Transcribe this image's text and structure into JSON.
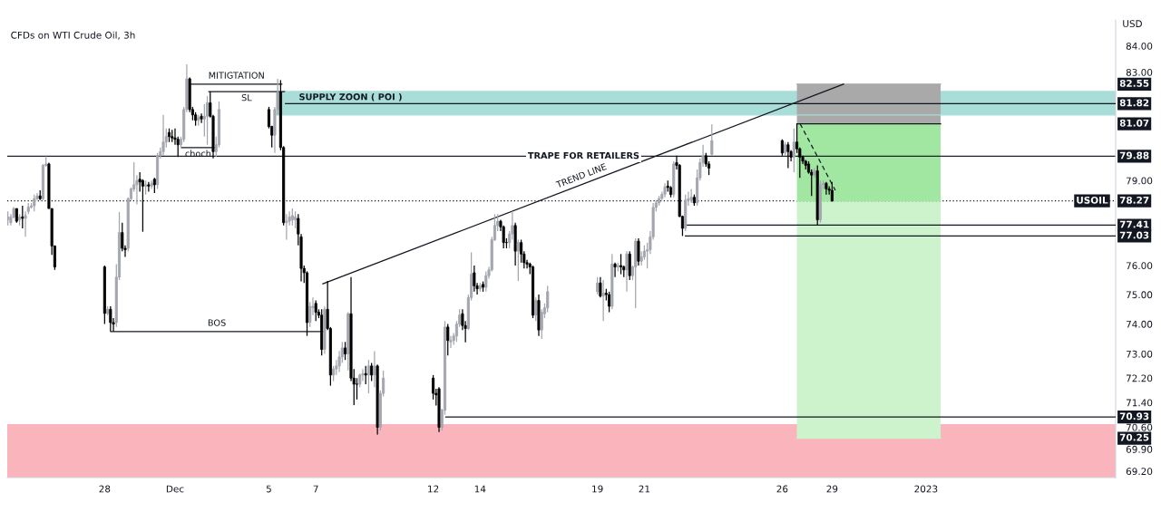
{
  "chart_data": {
    "type": "candlestick",
    "title": "CFDs on WTI Crude Oil, 3h",
    "ylabel": "USD",
    "log": true,
    "grid": false,
    "ylim": [
      69.0,
      85.0
    ],
    "yticks": [
      {
        "value": 84,
        "label": "84.00"
      },
      {
        "value": 83,
        "label": "83.00"
      },
      {
        "value": 79,
        "label": "79.00"
      },
      {
        "value": 76,
        "label": "76.00"
      },
      {
        "value": 75,
        "label": "75.00"
      },
      {
        "value": 74,
        "label": "74.00"
      },
      {
        "value": 73,
        "label": "73.00"
      },
      {
        "value": 72.2,
        "label": "72.20"
      },
      {
        "value": 71.4,
        "label": "71.40"
      },
      {
        "value": 70.6,
        "label": "70.60"
      },
      {
        "value": 69.9,
        "label": "69.90"
      },
      {
        "value": 69.2,
        "label": "69.20"
      }
    ],
    "xlim": [
      "2022-11-23T20:24",
      "2023-01-10T02:00"
    ],
    "xticks": [
      {
        "value": "2022-11-28",
        "label": "28"
      },
      {
        "value": "2022-12-01",
        "label": "Dec"
      },
      {
        "value": "2022-12-05",
        "label": "5"
      },
      {
        "value": "2022-12-07",
        "label": "7"
      },
      {
        "value": "2022-12-12",
        "label": "12"
      },
      {
        "value": "2022-12-14",
        "label": "14"
      },
      {
        "value": "2022-12-19",
        "label": "19"
      },
      {
        "value": "2022-12-21",
        "label": "21"
      },
      {
        "value": "2022-12-26T21:00",
        "label": "26"
      },
      {
        "value": "2022-12-29",
        "label": "29"
      },
      {
        "value": "2023-01-02",
        "label": "2023"
      }
    ],
    "x": [
      "2022-11-23T21:00",
      "2022-11-24T00:00",
      "2022-11-24T03:00",
      "2022-11-24T06:00",
      "2022-11-24T09:00",
      "2022-11-24T12:00",
      "2022-11-24T15:00",
      "2022-11-24T18:00",
      "2022-11-24T21:00",
      "2022-11-25T00:00",
      "2022-11-25T03:00",
      "2022-11-25T06:00",
      "2022-11-25T09:00",
      "2022-11-25T12:00",
      "2022-11-25T15:00",
      "2022-11-25T18:00",
      "2022-11-25T21:00",
      "2022-11-28T00:00",
      "2022-11-28T03:00",
      "2022-11-28T06:00",
      "2022-11-28T09:00",
      "2022-11-28T12:00",
      "2022-11-28T15:00",
      "2022-11-28T18:00",
      "2022-11-28T21:00",
      "2022-11-29T00:00",
      "2022-11-29T03:00",
      "2022-11-29T06:00",
      "2022-11-29T09:00",
      "2022-11-29T12:00",
      "2022-11-29T15:00",
      "2022-11-29T18:00",
      "2022-11-29T21:00",
      "2022-11-30T00:00",
      "2022-11-30T03:00",
      "2022-11-30T06:00",
      "2022-11-30T09:00",
      "2022-11-30T12:00",
      "2022-11-30T15:00",
      "2022-11-30T18:00",
      "2022-11-30T21:00",
      "2022-12-01T00:00",
      "2022-12-01T03:00",
      "2022-12-01T06:00",
      "2022-12-01T09:00",
      "2022-12-01T12:00",
      "2022-12-01T15:00",
      "2022-12-01T18:00",
      "2022-12-01T21:00",
      "2022-12-02T00:00",
      "2022-12-02T03:00",
      "2022-12-02T06:00",
      "2022-12-02T09:00",
      "2022-12-02T12:00",
      "2022-12-02T15:00",
      "2022-12-02T18:00",
      "2022-12-02T21:00",
      "2022-12-05T00:00",
      "2022-12-05T03:00",
      "2022-12-05T06:00",
      "2022-12-05T09:00",
      "2022-12-05T12:00",
      "2022-12-05T15:00",
      "2022-12-05T18:00",
      "2022-12-05T21:00",
      "2022-12-06T00:00",
      "2022-12-06T03:00",
      "2022-12-06T06:00",
      "2022-12-06T09:00",
      "2022-12-06T12:00",
      "2022-12-06T15:00",
      "2022-12-06T18:00",
      "2022-12-06T21:00",
      "2022-12-07T00:00",
      "2022-12-07T03:00",
      "2022-12-07T06:00",
      "2022-12-07T09:00",
      "2022-12-07T12:00",
      "2022-12-07T15:00",
      "2022-12-07T18:00",
      "2022-12-07T21:00",
      "2022-12-08T00:00",
      "2022-12-08T03:00",
      "2022-12-08T06:00",
      "2022-12-08T09:00",
      "2022-12-08T12:00",
      "2022-12-08T15:00",
      "2022-12-08T18:00",
      "2022-12-08T21:00",
      "2022-12-09T00:00",
      "2022-12-09T03:00",
      "2022-12-09T06:00",
      "2022-12-09T09:00",
      "2022-12-09T12:00",
      "2022-12-09T15:00",
      "2022-12-09T18:00",
      "2022-12-09T21:00",
      "2022-12-12T00:00",
      "2022-12-12T03:00",
      "2022-12-12T06:00",
      "2022-12-12T09:00",
      "2022-12-12T12:00",
      "2022-12-12T15:00",
      "2022-12-12T18:00",
      "2022-12-12T21:00",
      "2022-12-13T00:00",
      "2022-12-13T03:00",
      "2022-12-13T06:00",
      "2022-12-13T09:00",
      "2022-12-13T12:00",
      "2022-12-13T15:00",
      "2022-12-13T18:00",
      "2022-12-13T21:00",
      "2022-12-14T00:00",
      "2022-12-14T03:00",
      "2022-12-14T06:00",
      "2022-12-14T09:00",
      "2022-12-14T12:00",
      "2022-12-14T15:00",
      "2022-12-14T18:00",
      "2022-12-14T21:00",
      "2022-12-15T00:00",
      "2022-12-15T03:00",
      "2022-12-15T06:00",
      "2022-12-15T09:00",
      "2022-12-15T12:00",
      "2022-12-15T15:00",
      "2022-12-15T18:00",
      "2022-12-15T21:00",
      "2022-12-16T00:00",
      "2022-12-16T03:00",
      "2022-12-16T06:00",
      "2022-12-16T09:00",
      "2022-12-16T12:00",
      "2022-12-16T15:00",
      "2022-12-16T18:00",
      "2022-12-16T21:00",
      "2022-12-19T00:00",
      "2022-12-19T03:00",
      "2022-12-19T06:00",
      "2022-12-19T09:00",
      "2022-12-19T12:00",
      "2022-12-19T15:00",
      "2022-12-19T18:00",
      "2022-12-19T21:00",
      "2022-12-20T00:00",
      "2022-12-20T03:00",
      "2022-12-20T06:00",
      "2022-12-20T09:00",
      "2022-12-20T12:00",
      "2022-12-20T15:00",
      "2022-12-20T18:00",
      "2022-12-20T21:00",
      "2022-12-21T00:00",
      "2022-12-21T03:00",
      "2022-12-21T06:00",
      "2022-12-21T09:00",
      "2022-12-21T12:00",
      "2022-12-21T15:00",
      "2022-12-21T18:00",
      "2022-12-21T21:00",
      "2022-12-22T00:00",
      "2022-12-22T03:00",
      "2022-12-22T06:00",
      "2022-12-22T09:00",
      "2022-12-22T12:00",
      "2022-12-22T15:00",
      "2022-12-22T18:00",
      "2022-12-22T21:00",
      "2022-12-23T00:00",
      "2022-12-23T03:00",
      "2022-12-23T06:00",
      "2022-12-23T09:00",
      "2022-12-23T12:00",
      "2022-12-23T15:00",
      "2022-12-23T18:00",
      "2022-12-23T21:00",
      "2022-12-26T21:00",
      "2022-12-27T00:00",
      "2022-12-27T03:00",
      "2022-12-27T06:00",
      "2022-12-27T09:00",
      "2022-12-27T12:00",
      "2022-12-27T15:00",
      "2022-12-27T18:00",
      "2022-12-27T21:00",
      "2022-12-28T00:00",
      "2022-12-28T03:00",
      "2022-12-28T06:00",
      "2022-12-28T09:00",
      "2022-12-28T12:00",
      "2022-12-28T15:00",
      "2022-12-28T18:00",
      "2022-12-28T21:00",
      "2022-12-29T00:00"
    ],
    "ohlc": [
      [
        77.6,
        77.9,
        77.4,
        77.7
      ],
      [
        77.5,
        77.8,
        77.4,
        77.7
      ],
      [
        77.7,
        78.05,
        77.65,
        78.0
      ],
      [
        78.0,
        78.0,
        77.5,
        77.55
      ],
      [
        77.6,
        77.8,
        77.4,
        77.7
      ],
      [
        77.7,
        78.1,
        77.3,
        77.65
      ],
      [
        77.65,
        77.9,
        77.0,
        77.75
      ],
      [
        77.9,
        78.2,
        77.8,
        78.05
      ],
      [
        78.05,
        78.2,
        78.0,
        78.1
      ],
      [
        78.1,
        78.5,
        77.9,
        78.35
      ],
      [
        78.35,
        78.55,
        78.3,
        78.45
      ],
      [
        78.45,
        78.65,
        78.3,
        78.35
      ],
      [
        78.35,
        79.6,
        78.3,
        79.55
      ],
      [
        79.55,
        79.88,
        79.5,
        79.6
      ],
      [
        79.6,
        79.65,
        78.0,
        78.0
      ],
      [
        78.0,
        78.0,
        76.37,
        76.68
      ],
      [
        76.68,
        76.7,
        75.85,
        75.95
      ],
      [
        75.95,
        76.0,
        74.0,
        74.36
      ],
      [
        74.36,
        74.6,
        74.3,
        74.5
      ],
      [
        74.5,
        74.6,
        73.75,
        74.05
      ],
      [
        74.05,
        74.2,
        73.75,
        74.0
      ],
      [
        74.05,
        76.05,
        73.9,
        75.6
      ],
      [
        75.6,
        77.88,
        75.5,
        77.15
      ],
      [
        77.15,
        77.5,
        76.5,
        76.6
      ],
      [
        76.6,
        76.7,
        76.3,
        76.55
      ],
      [
        76.6,
        78.4,
        76.5,
        78.35
      ],
      [
        78.35,
        78.75,
        78.3,
        78.7
      ],
      [
        78.7,
        79.66,
        78.6,
        78.85
      ],
      [
        78.85,
        79.2,
        78.15,
        79.0
      ],
      [
        79.05,
        79.3,
        78.6,
        78.95
      ],
      [
        79.0,
        79.05,
        77.18,
        78.8
      ],
      [
        78.8,
        79.0,
        78.5,
        78.85
      ],
      [
        78.85,
        78.95,
        78.6,
        78.8
      ],
      [
        78.8,
        79.0,
        78.7,
        78.9
      ],
      [
        79.05,
        79.1,
        78.55,
        78.85
      ],
      [
        78.85,
        80.0,
        78.7,
        79.9
      ],
      [
        79.9,
        80.2,
        79.8,
        80.05
      ],
      [
        80.05,
        81.4,
        79.9,
        80.4
      ],
      [
        80.4,
        80.9,
        80.2,
        80.6
      ],
      [
        80.75,
        80.9,
        80.4,
        80.6
      ],
      [
        80.6,
        80.85,
        80.4,
        80.55
      ],
      [
        80.55,
        80.9,
        80.3,
        80.5
      ],
      [
        80.5,
        80.6,
        79.85,
        80.3
      ],
      [
        80.3,
        80.6,
        80.2,
        80.5
      ],
      [
        80.5,
        81.7,
        80.4,
        81.6
      ],
      [
        81.6,
        83.3,
        81.5,
        82.75
      ],
      [
        82.75,
        82.8,
        81.5,
        81.6
      ],
      [
        81.6,
        81.7,
        81.2,
        81.4
      ],
      [
        81.4,
        81.5,
        81.0,
        81.2
      ],
      [
        81.2,
        81.4,
        81.0,
        81.3
      ],
      [
        81.35,
        81.45,
        81.1,
        81.25
      ],
      [
        81.25,
        81.8,
        80.6,
        81.35
      ],
      [
        81.35,
        82.1,
        80.3,
        81.85
      ],
      [
        81.85,
        82.27,
        81.3,
        81.35
      ],
      [
        81.35,
        81.4,
        79.8,
        80.05
      ],
      [
        80.05,
        80.6,
        79.85,
        80.3
      ],
      [
        80.3,
        81.9,
        80.2,
        81.6
      ],
      [
        81.6,
        81.7,
        80.9,
        80.97
      ],
      [
        80.97,
        81.0,
        80.2,
        80.65
      ],
      [
        80.65,
        81.7,
        80.0,
        81.6
      ],
      [
        81.6,
        82.75,
        81.4,
        82.25
      ],
      [
        82.25,
        82.7,
        80.1,
        80.2
      ],
      [
        80.2,
        80.25,
        77.4,
        77.5
      ],
      [
        77.5,
        77.8,
        76.9,
        77.55
      ],
      [
        77.55,
        77.9,
        77.4,
        77.7
      ],
      [
        77.6,
        78.0,
        77.4,
        77.75
      ],
      [
        77.6,
        77.9,
        77.3,
        77.7
      ],
      [
        77.65,
        77.8,
        76.7,
        77.1
      ],
      [
        77.0,
        77.1,
        75.45,
        75.9
      ],
      [
        75.9,
        76.0,
        75.4,
        75.75
      ],
      [
        75.75,
        75.8,
        73.6,
        74.05
      ],
      [
        74.06,
        74.75,
        73.9,
        74.6
      ],
      [
        74.55,
        74.9,
        74.3,
        74.6
      ],
      [
        74.7,
        74.8,
        74.1,
        74.4
      ],
      [
        74.4,
        74.5,
        74.2,
        74.3
      ],
      [
        74.3,
        74.5,
        72.95,
        73.15
      ],
      [
        73.15,
        74.6,
        73.0,
        74.5
      ],
      [
        74.5,
        75.47,
        73.8,
        73.85
      ],
      [
        73.85,
        73.9,
        71.95,
        72.3
      ],
      [
        72.3,
        72.6,
        72.1,
        72.5
      ],
      [
        72.5,
        72.8,
        72.3,
        72.6
      ],
      [
        72.6,
        73.1,
        72.4,
        72.9
      ],
      [
        72.9,
        73.4,
        72.7,
        73.2
      ],
      [
        73.2,
        73.4,
        72.8,
        73.0
      ],
      [
        73.0,
        74.4,
        72.45,
        74.35
      ],
      [
        74.35,
        75.6,
        72.1,
        72.2
      ],
      [
        72.2,
        72.5,
        71.32,
        72.0
      ],
      [
        72.0,
        72.2,
        71.5,
        72.0
      ],
      [
        72.0,
        72.35,
        71.9,
        72.3
      ],
      [
        72.3,
        72.5,
        72.1,
        72.35
      ],
      [
        72.35,
        72.6,
        72.0,
        72.3
      ],
      [
        72.3,
        72.8,
        71.7,
        72.6
      ],
      [
        72.6,
        72.7,
        72.1,
        72.3
      ],
      [
        72.3,
        73.09,
        71.9,
        72.6
      ],
      [
        72.6,
        72.65,
        70.37,
        70.6
      ],
      [
        70.6,
        71.8,
        70.5,
        71.7
      ],
      [
        71.7,
        72.45,
        71.6,
        72.2
      ],
      [
        72.2,
        72.3,
        71.5,
        71.7
      ],
      [
        71.7,
        71.85,
        71.3,
        71.65
      ],
      [
        71.85,
        71.9,
        70.45,
        70.6
      ],
      [
        70.6,
        71.2,
        70.5,
        71.15
      ],
      [
        71.15,
        74.1,
        71.0,
        73.9
      ],
      [
        73.9,
        74.0,
        72.95,
        73.45
      ],
      [
        73.4,
        73.6,
        73.2,
        73.45
      ],
      [
        73.45,
        73.7,
        73.3,
        73.6
      ],
      [
        73.6,
        74.1,
        73.4,
        74.0
      ],
      [
        74.0,
        74.5,
        73.9,
        74.3
      ],
      [
        74.35,
        74.5,
        73.8,
        73.95
      ],
      [
        73.95,
        74.1,
        73.39,
        73.85
      ],
      [
        73.85,
        75.0,
        73.8,
        74.9
      ],
      [
        74.9,
        76.46,
        74.8,
        75.7
      ],
      [
        75.75,
        76.0,
        75.1,
        75.3
      ],
      [
        75.3,
        75.4,
        75.0,
        75.2
      ],
      [
        75.2,
        75.4,
        75.1,
        75.3
      ],
      [
        75.35,
        75.45,
        75.1,
        75.25
      ],
      [
        75.25,
        75.8,
        75.1,
        75.65
      ],
      [
        75.65,
        75.95,
        75.55,
        75.85
      ],
      [
        75.85,
        77.0,
        75.8,
        76.9
      ],
      [
        76.9,
        77.8,
        76.85,
        77.4
      ],
      [
        77.4,
        77.8,
        77.2,
        77.55
      ],
      [
        77.55,
        77.6,
        77.2,
        77.35
      ],
      [
        77.35,
        77.4,
        76.6,
        76.8
      ],
      [
        76.8,
        76.95,
        76.6,
        76.8
      ],
      [
        76.8,
        77.2,
        76.6,
        77.1
      ],
      [
        77.1,
        77.9,
        76.9,
        77.4
      ],
      [
        77.4,
        77.5,
        76.0,
        76.5
      ],
      [
        76.5,
        76.9,
        75.47,
        76.8
      ],
      [
        76.8,
        76.9,
        76.1,
        76.4
      ],
      [
        76.4,
        76.5,
        75.9,
        76.1
      ],
      [
        76.1,
        76.2,
        75.9,
        76.05
      ],
      [
        76.05,
        76.1,
        75.7,
        75.95
      ],
      [
        75.95,
        76.0,
        74.2,
        74.3
      ],
      [
        74.3,
        74.9,
        74.1,
        74.8
      ],
      [
        74.8,
        75.0,
        73.6,
        73.8
      ],
      [
        73.8,
        74.5,
        73.5,
        74.4
      ],
      [
        74.35,
        74.7,
        74.2,
        74.55
      ],
      [
        74.55,
        75.3,
        74.4,
        75.1
      ],
      [
        75.1,
        75.6,
        75.0,
        75.4
      ],
      [
        75.4,
        75.6,
        74.9,
        74.95
      ],
      [
        74.95,
        75.5,
        74.1,
        75.05
      ],
      [
        75.05,
        75.2,
        74.8,
        75.0
      ],
      [
        75.0,
        75.1,
        74.4,
        74.6
      ],
      [
        74.6,
        76.4,
        74.5,
        76.05
      ],
      [
        76.05,
        76.1,
        75.6,
        75.95
      ],
      [
        75.95,
        76.1,
        75.8,
        76.0
      ],
      [
        76.0,
        76.4,
        75.7,
        75.95
      ],
      [
        75.95,
        76.0,
        75.6,
        75.85
      ],
      [
        75.85,
        76.5,
        75.1,
        76.4
      ],
      [
        76.4,
        76.5,
        75.5,
        75.65
      ],
      [
        75.65,
        76.0,
        75.5,
        75.95
      ],
      [
        75.95,
        76.95,
        74.54,
        76.85
      ],
      [
        76.85,
        76.95,
        76.0,
        76.15
      ],
      [
        76.15,
        76.5,
        76.0,
        76.3
      ],
      [
        76.3,
        76.7,
        76.2,
        76.5
      ],
      [
        76.5,
        76.8,
        75.9,
        76.55
      ],
      [
        76.55,
        77.2,
        76.4,
        77.0
      ],
      [
        77.0,
        78.2,
        76.9,
        78.04
      ],
      [
        78.04,
        78.3,
        77.9,
        78.2
      ],
      [
        78.2,
        78.45,
        78.1,
        78.36
      ],
      [
        78.36,
        78.6,
        78.3,
        78.51
      ],
      [
        78.51,
        78.9,
        78.4,
        78.77
      ],
      [
        78.8,
        79.0,
        78.6,
        78.75
      ],
      [
        78.75,
        78.8,
        78.4,
        78.5
      ],
      [
        78.5,
        79.7,
        78.4,
        79.6
      ],
      [
        79.65,
        79.9,
        79.4,
        79.55
      ],
      [
        79.55,
        79.6,
        77.7,
        77.72
      ],
      [
        77.72,
        77.75,
        77.03,
        77.3
      ],
      [
        77.3,
        78.5,
        77.2,
        78.3
      ],
      [
        78.3,
        78.6,
        78.1,
        78.35
      ],
      [
        78.3,
        78.7,
        78.2,
        78.4
      ],
      [
        78.4,
        78.5,
        78.1,
        78.2
      ],
      [
        78.2,
        79.4,
        78.1,
        79.1
      ],
      [
        79.1,
        79.8,
        79.0,
        79.65
      ],
      [
        79.65,
        80.3,
        79.5,
        79.9
      ],
      [
        79.9,
        80.0,
        79.5,
        79.6
      ],
      [
        79.6,
        79.7,
        79.2,
        79.45
      ],
      [
        79.95,
        81.05,
        79.9,
        80.45
      ],
      [
        80.45,
        80.5,
        79.9,
        80.0
      ],
      [
        80.0,
        80.4,
        79.9,
        80.3
      ],
      [
        80.3,
        80.4,
        79.45,
        80.05
      ],
      [
        80.05,
        80.1,
        79.7,
        79.85
      ],
      [
        79.85,
        80.9,
        79.3,
        80.4
      ],
      [
        80.4,
        81.07,
        80.0,
        80.15
      ],
      [
        80.15,
        80.2,
        79.1,
        79.85
      ],
      [
        79.85,
        79.9,
        79.6,
        79.7
      ],
      [
        79.7,
        79.75,
        79.4,
        79.55
      ],
      [
        79.6,
        79.7,
        79.25,
        79.3
      ],
      [
        79.3,
        79.4,
        78.45,
        79.2
      ],
      [
        79.2,
        79.45,
        79.1,
        79.35
      ],
      [
        79.35,
        79.55,
        77.41,
        77.6
      ],
      [
        77.6,
        79.0,
        77.5,
        78.85
      ],
      [
        78.85,
        79.0,
        78.7,
        78.9
      ],
      [
        78.9,
        78.95,
        78.5,
        78.7
      ],
      [
        78.7,
        78.8,
        78.5,
        78.65
      ],
      [
        78.65,
        78.95,
        78.25,
        78.27
      ]
    ],
    "colors": [
      "#a3a6af",
      "#a3a6af",
      "#a3a6af",
      "#000000",
      "#a3a6af",
      "#000000",
      "#a3a6af",
      "#a3a6af",
      "#a3a6af",
      "#a3a6af",
      "#a3a6af",
      "#000000",
      "#a3a6af",
      "#a3a6af",
      "#000000",
      "#000000",
      "#000000",
      "#000000",
      "#a3a6af",
      "#000000",
      "#000000",
      "#a3a6af",
      "#a3a6af",
      "#000000",
      "#000000",
      "#a3a6af",
      "#a3a6af",
      "#a3a6af",
      "#a3a6af",
      "#000000",
      "#000000",
      "#a3a6af",
      "#000000",
      "#a3a6af",
      "#000000",
      "#a3a6af",
      "#a3a6af",
      "#a3a6af",
      "#a3a6af",
      "#000000",
      "#000000",
      "#000000",
      "#000000",
      "#a3a6af",
      "#a3a6af",
      "#a3a6af",
      "#000000",
      "#000000",
      "#000000",
      "#a3a6af",
      "#000000",
      "#a3a6af",
      "#a3a6af",
      "#000000",
      "#000000",
      "#a3a6af",
      "#a3a6af",
      "#000000",
      "#000000",
      "#a3a6af",
      "#a3a6af",
      "#000000",
      "#000000",
      "#a3a6af",
      "#a3a6af",
      "#a3a6af",
      "#a3a6af",
      "#000000",
      "#000000",
      "#000000",
      "#000000",
      "#a3a6af",
      "#a3a6af",
      "#000000",
      "#000000",
      "#000000",
      "#a3a6af",
      "#000000",
      "#000000",
      "#a3a6af",
      "#a3a6af",
      "#a3a6af",
      "#a3a6af",
      "#000000",
      "#a3a6af",
      "#000000",
      "#000000",
      "#000000",
      "#a3a6af",
      "#a3a6af",
      "#000000",
      "#a3a6af",
      "#000000",
      "#a3a6af",
      "#000000",
      "#a3a6af",
      "#a3a6af",
      "#000000",
      "#000000",
      "#000000",
      "#a3a6af",
      "#a3a6af",
      "#000000",
      "#a3a6af",
      "#a3a6af",
      "#a3a6af",
      "#a3a6af",
      "#000000",
      "#000000",
      "#a3a6af",
      "#a3a6af",
      "#000000",
      "#000000",
      "#a3a6af",
      "#000000",
      "#a3a6af",
      "#a3a6af",
      "#a3a6af",
      "#a3a6af",
      "#a3a6af",
      "#000000",
      "#000000",
      "#000000",
      "#a3a6af",
      "#a3a6af",
      "#000000",
      "#a3a6af",
      "#000000",
      "#000000",
      "#000000",
      "#000000",
      "#000000",
      "#a3a6af",
      "#000000",
      "#a3a6af",
      "#a3a6af",
      "#a3a6af",
      "#a3a6af",
      "#000000",
      "#a3a6af",
      "#000000",
      "#000000",
      "#a3a6af",
      "#000000",
      "#a3a6af",
      "#000000",
      "#000000",
      "#a3a6af",
      "#000000",
      "#a3a6af",
      "#a3a6af",
      "#000000",
      "#a3a6af",
      "#a3a6af",
      "#a3a6af",
      "#a3a6af",
      "#a3a6af",
      "#a3a6af",
      "#a3a6af",
      "#a3a6af",
      "#a3a6af",
      "#000000",
      "#000000",
      "#a3a6af",
      "#000000",
      "#000000",
      "#000000",
      "#a3a6af",
      "#a3a6af",
      "#a3a6af",
      "#000000",
      "#a3a6af",
      "#a3a6af",
      "#a3a6af",
      "#000000",
      "#000000",
      "#a3a6af",
      "#000000",
      "#a3a6af",
      "#000000",
      "#000000",
      "#a3a6af",
      "#000000",
      "#000000",
      "#000000",
      "#000000",
      "#000000",
      "#000000",
      "#a3a6af",
      "#000000",
      "#a3a6af",
      "#a3a6af",
      "#000000",
      "#000000",
      "#000000"
    ],
    "series": [
      {
        "type": "line",
        "name": "SUPPLY ZOON ( POI )",
        "color": "#a8ddd8",
        "x": [
          "2022-12-05T07:30",
          "2023-01-10T02:00"
        ],
        "values": [
          81.4,
          81.4
        ],
        "lower": [
          81.4,
          81.4
        ],
        "upper": [
          82.3,
          82.3
        ]
      },
      {
        "type": "line",
        "color": "#a9a9a9",
        "x": [
          "2022-12-27T12:00",
          "2023-01-02T15:00"
        ],
        "values": [
          82.55,
          82.55
        ],
        "lower": [
          81.07,
          81.07
        ],
        "upper": [
          82.55,
          82.55
        ]
      },
      {
        "type": "line",
        "color": "#a1e6a1",
        "x": [
          "2022-12-27T12:00",
          "2023-01-02T15:00"
        ],
        "values": [
          78.27,
          78.27
        ],
        "lower": [
          78.27,
          78.27
        ],
        "upper": [
          81.07,
          81.07
        ]
      },
      {
        "type": "line",
        "color": "#cdf3cd",
        "x": [
          "2022-12-27T12:00",
          "2023-01-02T15:00"
        ],
        "values": [
          70.25,
          70.25
        ],
        "lower": [
          70.25,
          70.25
        ],
        "upper": [
          78.27,
          78.27
        ]
      },
      {
        "type": "line",
        "color": "#131722",
        "x": [
          "2022-12-05T17:00",
          "2023-01-10T02:00"
        ],
        "values": [
          81.82,
          81.82
        ]
      },
      {
        "type": "line",
        "color": "#131722",
        "x": [
          "2022-12-27T12:00",
          "2023-01-02T15:00"
        ],
        "values": [
          81.07,
          81.07
        ]
      },
      {
        "type": "line",
        "color": "#131722",
        "x": [
          "2022-12-22T19:48",
          "2023-01-10T02:00"
        ],
        "values": [
          77.41,
          77.41
        ]
      },
      {
        "type": "line",
        "color": "#131722",
        "x": [
          "2022-12-22T18:00",
          "2023-01-10T02:00"
        ],
        "values": [
          77.03,
          77.03
        ]
      },
      {
        "type": "line",
        "color": "#131722",
        "x": [
          "2022-12-12T12:54",
          "2023-01-10T02:00"
        ],
        "values": [
          70.93,
          70.93
        ]
      },
      {
        "type": "line",
        "name": "TREND LINE",
        "color": "#131722",
        "x": [
          "2022-12-07T07:12",
          "2022-12-29T11:42"
        ],
        "values": [
          75.37,
          82.55
        ]
      },
      {
        "type": "line",
        "color": "#131722",
        "line_style": "dashed",
        "x": [
          "2022-12-27T15:18",
          "2022-12-29T03:18"
        ],
        "values": [
          81.07,
          78.65
        ]
      },
      {
        "type": "line",
        "name": "BOS",
        "color": "#131722",
        "x": [
          "2022-11-28T06:18",
          "2022-12-07T07:12"
        ],
        "values": [
          73.75,
          73.75
        ]
      },
      {
        "type": "line",
        "name": "choch",
        "color": "#131722",
        "x": [
          "2022-12-01T06:36",
          "2022-12-02T16:30"
        ],
        "values": [
          80.2,
          80.2
        ]
      },
      {
        "type": "line",
        "name": "MITIGTATION",
        "color": "#131722",
        "x": [
          "2022-12-01T16:30",
          "2022-12-05T13:12"
        ],
        "values": [
          82.55,
          82.55
        ]
      },
      {
        "type": "line",
        "name": "SL",
        "color": "#131722",
        "x": [
          "2022-12-02T10:30",
          "2022-12-05T15:54"
        ],
        "values": [
          82.27,
          82.27
        ]
      }
    ],
    "bands": [
      {
        "axis": "y",
        "from": 69.0,
        "to": 70.7,
        "color": "#f9b5bb"
      }
    ],
    "ref_lines": [
      {
        "axis": "y",
        "value": 79.88,
        "color": "#1e222d",
        "label": "TRAPE FOR RETAILERS"
      },
      {
        "axis": "y",
        "value": 78.27,
        "color": "#131722",
        "line_style": "dotted"
      }
    ],
    "annotations": [
      {
        "text": "82.55",
        "y": 82.55
      },
      {
        "text": "81.82",
        "y": 81.82
      },
      {
        "text": "81.07",
        "y": 81.07
      },
      {
        "text": "79.88",
        "y": 79.88
      },
      {
        "text": "78.27",
        "y": 78.27
      },
      {
        "text": "USOIL",
        "y": 78.27
      },
      {
        "text": "77.41",
        "y": 77.41
      },
      {
        "text": "77.03",
        "y": 77.03
      },
      {
        "text": "70.93",
        "y": 70.93
      },
      {
        "text": "70.25",
        "y": 70.25
      }
    ]
  }
}
